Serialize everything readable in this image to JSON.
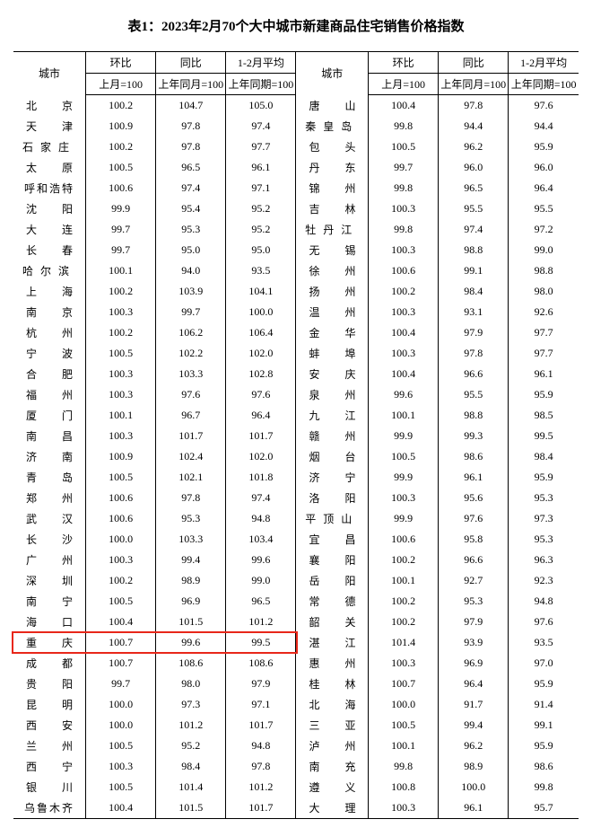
{
  "title": "表1：2023年2月70个大中城市新建商品住宅销售价格指数",
  "headers": {
    "city": "城市",
    "mom": "环比",
    "yoy": "同比",
    "avg": "1-2月平均",
    "mom_sub": "上月=100",
    "yoy_sub": "上年同月=100",
    "avg_sub": "上年同期=100"
  },
  "highlight_index": 24,
  "highlight_color": "#e8271a",
  "left": [
    {
      "c": "北京",
      "m": "100.2",
      "y": "104.7",
      "a": "105.0"
    },
    {
      "c": "天津",
      "m": "100.9",
      "y": "97.8",
      "a": "97.4"
    },
    {
      "c": "石家庄",
      "m": "100.2",
      "y": "97.8",
      "a": "97.7"
    },
    {
      "c": "太原",
      "m": "100.5",
      "y": "96.5",
      "a": "96.1"
    },
    {
      "c": "呼和浩特",
      "m": "100.6",
      "y": "97.4",
      "a": "97.1"
    },
    {
      "c": "沈阳",
      "m": "99.9",
      "y": "95.4",
      "a": "95.2"
    },
    {
      "c": "大连",
      "m": "99.7",
      "y": "95.3",
      "a": "95.2"
    },
    {
      "c": "长春",
      "m": "99.7",
      "y": "95.0",
      "a": "95.0"
    },
    {
      "c": "哈尔滨",
      "m": "100.1",
      "y": "94.0",
      "a": "93.5"
    },
    {
      "c": "上海",
      "m": "100.2",
      "y": "103.9",
      "a": "104.1"
    },
    {
      "c": "南京",
      "m": "100.3",
      "y": "99.7",
      "a": "100.0"
    },
    {
      "c": "杭州",
      "m": "100.2",
      "y": "106.2",
      "a": "106.4"
    },
    {
      "c": "宁波",
      "m": "100.5",
      "y": "102.2",
      "a": "102.0"
    },
    {
      "c": "合肥",
      "m": "100.3",
      "y": "103.3",
      "a": "102.8"
    },
    {
      "c": "福州",
      "m": "100.3",
      "y": "97.6",
      "a": "97.6"
    },
    {
      "c": "厦门",
      "m": "100.1",
      "y": "96.7",
      "a": "96.4"
    },
    {
      "c": "南昌",
      "m": "100.3",
      "y": "101.7",
      "a": "101.7"
    },
    {
      "c": "济南",
      "m": "100.9",
      "y": "102.4",
      "a": "102.0"
    },
    {
      "c": "青岛",
      "m": "100.5",
      "y": "102.1",
      "a": "101.8"
    },
    {
      "c": "郑州",
      "m": "100.6",
      "y": "97.8",
      "a": "97.4"
    },
    {
      "c": "武汉",
      "m": "100.6",
      "y": "95.3",
      "a": "94.8"
    },
    {
      "c": "长沙",
      "m": "100.0",
      "y": "103.3",
      "a": "103.4"
    },
    {
      "c": "广州",
      "m": "100.3",
      "y": "99.4",
      "a": "99.6"
    },
    {
      "c": "深圳",
      "m": "100.2",
      "y": "98.9",
      "a": "99.0"
    },
    {
      "c": "南宁",
      "m": "100.5",
      "y": "96.9",
      "a": "96.5"
    },
    {
      "c": "海口",
      "m": "100.4",
      "y": "101.5",
      "a": "101.2"
    },
    {
      "c": "重庆",
      "m": "100.7",
      "y": "99.6",
      "a": "99.5"
    },
    {
      "c": "成都",
      "m": "100.7",
      "y": "108.6",
      "a": "108.6"
    },
    {
      "c": "贵阳",
      "m": "99.7",
      "y": "98.0",
      "a": "97.9"
    },
    {
      "c": "昆明",
      "m": "100.0",
      "y": "97.3",
      "a": "97.1"
    },
    {
      "c": "西安",
      "m": "100.0",
      "y": "101.2",
      "a": "101.7"
    },
    {
      "c": "兰州",
      "m": "100.5",
      "y": "95.2",
      "a": "94.8"
    },
    {
      "c": "西宁",
      "m": "100.3",
      "y": "98.4",
      "a": "97.8"
    },
    {
      "c": "银川",
      "m": "100.5",
      "y": "101.4",
      "a": "101.2"
    },
    {
      "c": "乌鲁木齐",
      "m": "100.4",
      "y": "101.5",
      "a": "101.7"
    }
  ],
  "right": [
    {
      "c": "唐山",
      "m": "100.4",
      "y": "97.8",
      "a": "97.6"
    },
    {
      "c": "秦皇岛",
      "m": "99.8",
      "y": "94.4",
      "a": "94.4"
    },
    {
      "c": "包头",
      "m": "100.5",
      "y": "96.2",
      "a": "95.9"
    },
    {
      "c": "丹东",
      "m": "99.7",
      "y": "96.0",
      "a": "96.0"
    },
    {
      "c": "锦州",
      "m": "99.8",
      "y": "96.5",
      "a": "96.4"
    },
    {
      "c": "吉林",
      "m": "100.3",
      "y": "95.5",
      "a": "95.5"
    },
    {
      "c": "牡丹江",
      "m": "99.8",
      "y": "97.4",
      "a": "97.2"
    },
    {
      "c": "无锡",
      "m": "100.3",
      "y": "98.8",
      "a": "99.0"
    },
    {
      "c": "徐州",
      "m": "100.6",
      "y": "99.1",
      "a": "98.8"
    },
    {
      "c": "扬州",
      "m": "100.2",
      "y": "98.4",
      "a": "98.0"
    },
    {
      "c": "温州",
      "m": "100.3",
      "y": "93.1",
      "a": "92.6"
    },
    {
      "c": "金华",
      "m": "100.4",
      "y": "97.9",
      "a": "97.7"
    },
    {
      "c": "蚌埠",
      "m": "100.3",
      "y": "97.8",
      "a": "97.7"
    },
    {
      "c": "安庆",
      "m": "100.4",
      "y": "96.6",
      "a": "96.1"
    },
    {
      "c": "泉州",
      "m": "99.6",
      "y": "95.5",
      "a": "95.9"
    },
    {
      "c": "九江",
      "m": "100.1",
      "y": "98.8",
      "a": "98.5"
    },
    {
      "c": "赣州",
      "m": "99.9",
      "y": "99.3",
      "a": "99.5"
    },
    {
      "c": "烟台",
      "m": "100.5",
      "y": "98.6",
      "a": "98.4"
    },
    {
      "c": "济宁",
      "m": "99.9",
      "y": "96.1",
      "a": "95.9"
    },
    {
      "c": "洛阳",
      "m": "100.3",
      "y": "95.6",
      "a": "95.3"
    },
    {
      "c": "平顶山",
      "m": "99.9",
      "y": "97.6",
      "a": "97.3"
    },
    {
      "c": "宜昌",
      "m": "100.6",
      "y": "95.8",
      "a": "95.3"
    },
    {
      "c": "襄阳",
      "m": "100.2",
      "y": "96.6",
      "a": "96.3"
    },
    {
      "c": "岳阳",
      "m": "100.1",
      "y": "92.7",
      "a": "92.3"
    },
    {
      "c": "常德",
      "m": "100.2",
      "y": "95.3",
      "a": "94.8"
    },
    {
      "c": "韶关",
      "m": "100.2",
      "y": "97.9",
      "a": "97.6"
    },
    {
      "c": "湛江",
      "m": "101.4",
      "y": "93.9",
      "a": "93.5"
    },
    {
      "c": "惠州",
      "m": "100.3",
      "y": "96.9",
      "a": "97.0"
    },
    {
      "c": "桂林",
      "m": "100.7",
      "y": "96.4",
      "a": "95.9"
    },
    {
      "c": "北海",
      "m": "100.0",
      "y": "91.7",
      "a": "91.4"
    },
    {
      "c": "三亚",
      "m": "100.5",
      "y": "99.4",
      "a": "99.1"
    },
    {
      "c": "泸州",
      "m": "100.1",
      "y": "96.2",
      "a": "95.9"
    },
    {
      "c": "南充",
      "m": "99.8",
      "y": "98.9",
      "a": "98.6"
    },
    {
      "c": "遵义",
      "m": "100.8",
      "y": "100.0",
      "a": "99.8"
    },
    {
      "c": "大理",
      "m": "100.3",
      "y": "96.1",
      "a": "95.7"
    }
  ]
}
